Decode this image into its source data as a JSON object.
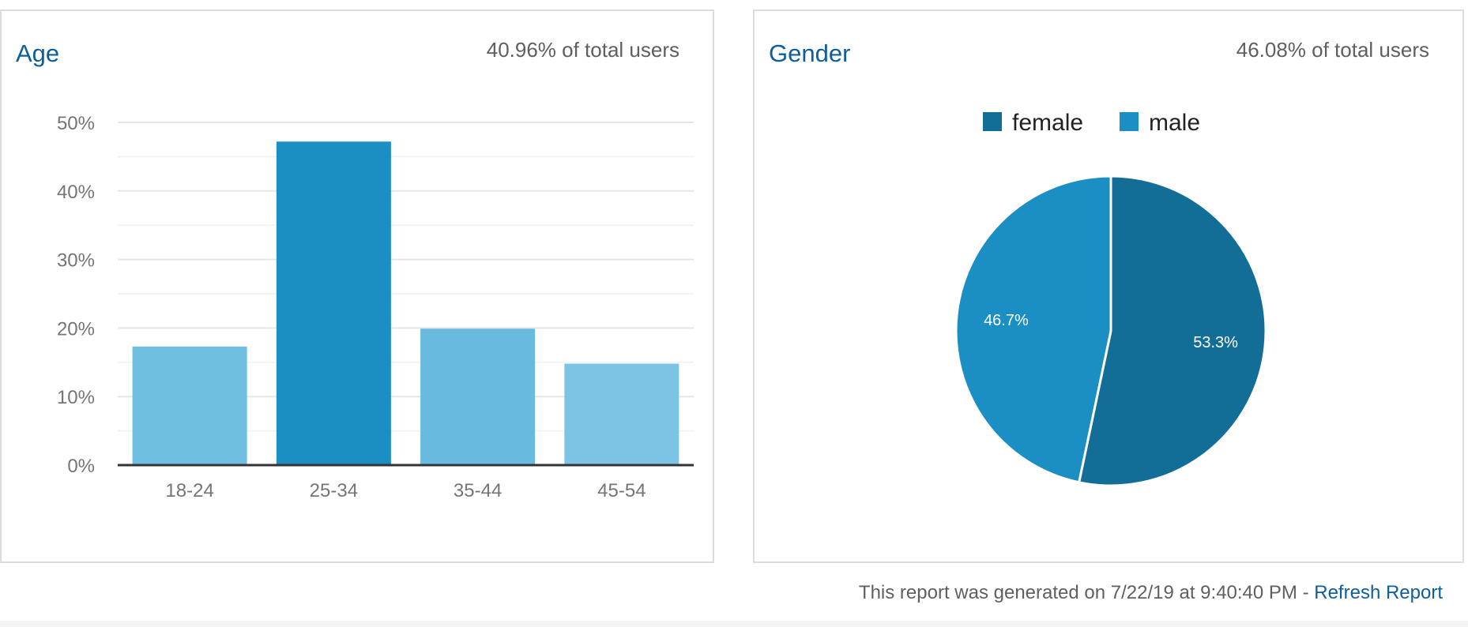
{
  "age_card": {
    "title": "Age",
    "subtitle": "40.96% of total users"
  },
  "gender_card": {
    "title": "Gender",
    "subtitle": "46.08% of total users"
  },
  "footer": {
    "text": "This report was generated on 7/22/19 at 9:40:40 PM - ",
    "link": "Refresh Report"
  },
  "chart_data": [
    {
      "type": "bar",
      "title": "Age",
      "categories": [
        "18-24",
        "25-34",
        "35-44",
        "45-54"
      ],
      "values": [
        17.3,
        47.2,
        19.9,
        14.8
      ],
      "colors": [
        "#71bfe0",
        "#1b8ec4",
        "#69badf",
        "#7cc4e3"
      ],
      "ylim": [
        0,
        50
      ],
      "yticks": [
        "0%",
        "10%",
        "20%",
        "30%",
        "40%",
        "50%"
      ],
      "xlabel": "",
      "ylabel": "",
      "grid": true
    },
    {
      "type": "pie",
      "title": "Gender",
      "labels": [
        "female",
        "male"
      ],
      "values": [
        53.3,
        46.7
      ],
      "data_labels": [
        "53.3%",
        "46.7%"
      ],
      "colors": [
        "#126e96",
        "#1b8ec4"
      ],
      "legend": "top-center"
    }
  ]
}
